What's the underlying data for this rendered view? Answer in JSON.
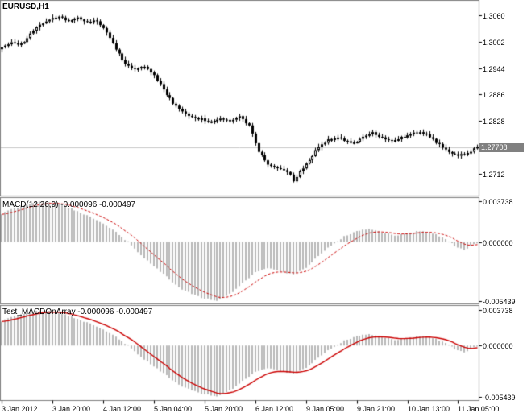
{
  "main_chart": {
    "title": "EURUSD,H1",
    "current_price_label": "1.27708"
  },
  "macd_panel": {
    "title": "MACD(12,26,9) -0.000096 -0.000497"
  },
  "array_panel": {
    "title": "Test_MACDOnArray -0.000096 -0.000497"
  },
  "colors": {
    "background": "#ffffff",
    "frame": "#808080",
    "candle": "#000000",
    "candle_up_fill": "#ffffff",
    "candle_down_fill": "#000000",
    "histogram": "#b8b8b8",
    "line_red": "#cc0000",
    "price_line": "#c8c8c8",
    "price_tag_bg": "#808080",
    "price_tag_fg": "#ffffff",
    "tick": "#000000",
    "text": "#000000"
  },
  "chart_data": [
    {
      "type": "candlestick",
      "symbol": "EURUSD",
      "timeframe": "H1",
      "bars": 151,
      "x_tick_bars": [
        0,
        16,
        32,
        48,
        64,
        80,
        96,
        112,
        128,
        144
      ],
      "x_tick_labels": [
        "3 Jan 2012",
        "3 Jan 20:00",
        "4 Jan 12:00",
        "5 Jan 04:00",
        "5 Jan 20:00",
        "6 Jan 12:00",
        "9 Jan 05:00",
        "9 Jan 21:00",
        "10 Jan 13:00",
        "11 Jan 05:00"
      ],
      "ylim": [
        1.2664,
        1.3092
      ],
      "y_ticks": [
        1.306,
        1.3002,
        1.2944,
        1.2886,
        1.2828,
        1.277,
        1.2712
      ],
      "last_price": 1.27708,
      "close_anchors": [
        [
          0,
          1.2992
        ],
        [
          3,
          1.3002
        ],
        [
          6,
          1.2996
        ],
        [
          9,
          1.3018
        ],
        [
          12,
          1.304
        ],
        [
          15,
          1.305
        ],
        [
          18,
          1.3056
        ],
        [
          21,
          1.3048
        ],
        [
          24,
          1.3056
        ],
        [
          27,
          1.3044
        ],
        [
          30,
          1.3048
        ],
        [
          33,
          1.3022
        ],
        [
          36,
          1.2986
        ],
        [
          39,
          1.2952
        ],
        [
          42,
          1.2942
        ],
        [
          45,
          1.2948
        ],
        [
          48,
          1.2928
        ],
        [
          51,
          1.2898
        ],
        [
          54,
          1.2866
        ],
        [
          57,
          1.2848
        ],
        [
          60,
          1.2838
        ],
        [
          63,
          1.2832
        ],
        [
          66,
          1.2826
        ],
        [
          69,
          1.2834
        ],
        [
          72,
          1.2828
        ],
        [
          75,
          1.284
        ],
        [
          78,
          1.2818
        ],
        [
          81,
          1.2762
        ],
        [
          84,
          1.2732
        ],
        [
          87,
          1.2726
        ],
        [
          90,
          1.2718
        ],
        [
          92,
          1.2698
        ],
        [
          94,
          1.2716
        ],
        [
          96,
          1.2732
        ],
        [
          99,
          1.2762
        ],
        [
          102,
          1.2782
        ],
        [
          105,
          1.2792
        ],
        [
          108,
          1.2786
        ],
        [
          111,
          1.278
        ],
        [
          114,
          1.2792
        ],
        [
          117,
          1.2802
        ],
        [
          120,
          1.2792
        ],
        [
          123,
          1.2786
        ],
        [
          126,
          1.2792
        ],
        [
          129,
          1.2798
        ],
        [
          132,
          1.2806
        ],
        [
          135,
          1.2792
        ],
        [
          138,
          1.2776
        ],
        [
          141,
          1.2762
        ],
        [
          144,
          1.2752
        ],
        [
          147,
          1.2758
        ],
        [
          150,
          1.2771
        ]
      ]
    },
    {
      "type": "bar",
      "title": "MACD(12,26,9)",
      "current_value": -9.6e-05,
      "current_signal": -0.000497,
      "line_style": "dashed",
      "ylim": [
        -0.00566,
        0.00404
      ],
      "y_ticks": [
        0.003738,
        0,
        -0.005439
      ],
      "value_anchors": [
        [
          0,
          0.0026
        ],
        [
          4,
          0.0031
        ],
        [
          8,
          0.0035
        ],
        [
          12,
          0.0037
        ],
        [
          16,
          0.0036
        ],
        [
          20,
          0.0033
        ],
        [
          24,
          0.0028
        ],
        [
          28,
          0.0023
        ],
        [
          32,
          0.0017
        ],
        [
          36,
          0.0009
        ],
        [
          40,
          0
        ],
        [
          44,
          -0.0012
        ],
        [
          48,
          -0.0022
        ],
        [
          52,
          -0.0032
        ],
        [
          56,
          -0.0042
        ],
        [
          60,
          -0.0048
        ],
        [
          64,
          -0.0052
        ],
        [
          68,
          -0.0054
        ],
        [
          72,
          -0.0048
        ],
        [
          76,
          -0.0038
        ],
        [
          80,
          -0.0028
        ],
        [
          84,
          -0.0024
        ],
        [
          88,
          -0.0027
        ],
        [
          92,
          -0.003
        ],
        [
          96,
          -0.0024
        ],
        [
          100,
          -0.0013
        ],
        [
          104,
          -0.0003
        ],
        [
          108,
          0.0005
        ],
        [
          112,
          0.001
        ],
        [
          116,
          0.0012
        ],
        [
          120,
          0.0009
        ],
        [
          124,
          0.0006
        ],
        [
          128,
          0.0008
        ],
        [
          132,
          0.001
        ],
        [
          136,
          0.0008
        ],
        [
          140,
          0.0003
        ],
        [
          143,
          -0.0004
        ],
        [
          146,
          -0.0007
        ],
        [
          148,
          -0.0004
        ],
        [
          150,
          -0.0001
        ]
      ]
    },
    {
      "type": "bar",
      "title": "Test_MACDOnArray",
      "current_value": -9.6e-05,
      "current_signal": -0.000497,
      "line_style": "solid",
      "ylim": [
        -0.0058,
        0.0042
      ],
      "y_ticks": [
        0.003738,
        0,
        -0.005439
      ],
      "value_anchors": [
        [
          0,
          0.0026
        ],
        [
          4,
          0.0031
        ],
        [
          8,
          0.0035
        ],
        [
          12,
          0.0037
        ],
        [
          16,
          0.0036
        ],
        [
          20,
          0.0033
        ],
        [
          24,
          0.0028
        ],
        [
          28,
          0.0023
        ],
        [
          32,
          0.0017
        ],
        [
          36,
          0.0009
        ],
        [
          40,
          0
        ],
        [
          44,
          -0.0012
        ],
        [
          48,
          -0.0022
        ],
        [
          52,
          -0.0032
        ],
        [
          56,
          -0.0042
        ],
        [
          60,
          -0.0048
        ],
        [
          64,
          -0.0052
        ],
        [
          68,
          -0.0054
        ],
        [
          72,
          -0.0048
        ],
        [
          76,
          -0.0038
        ],
        [
          80,
          -0.0028
        ],
        [
          84,
          -0.0024
        ],
        [
          88,
          -0.0027
        ],
        [
          92,
          -0.003
        ],
        [
          96,
          -0.0024
        ],
        [
          100,
          -0.0013
        ],
        [
          104,
          -0.0003
        ],
        [
          108,
          0.0005
        ],
        [
          112,
          0.001
        ],
        [
          116,
          0.0012
        ],
        [
          120,
          0.0009
        ],
        [
          124,
          0.0006
        ],
        [
          128,
          0.0008
        ],
        [
          132,
          0.001
        ],
        [
          136,
          0.0008
        ],
        [
          140,
          0.0003
        ],
        [
          143,
          -0.0004
        ],
        [
          146,
          -0.0007
        ],
        [
          148,
          -0.0004
        ],
        [
          150,
          -0.0001
        ]
      ]
    }
  ]
}
